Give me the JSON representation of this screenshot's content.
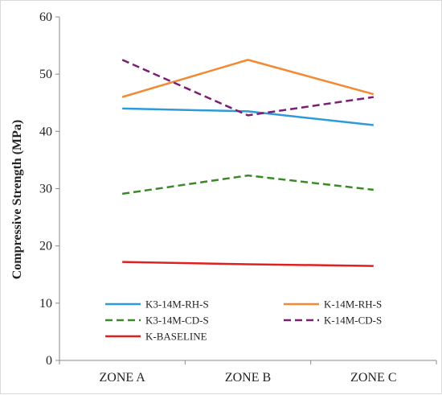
{
  "chart_data": {
    "type": "line",
    "title": "",
    "xlabel": "",
    "ylabel": "Compressive Strength (MPa)",
    "ylim": [
      0,
      60
    ],
    "yticks": [
      0,
      10,
      20,
      30,
      40,
      50,
      60
    ],
    "grid": false,
    "legend_position": "bottom-inside",
    "categories": [
      "ZONE A",
      "ZONE B",
      "ZONE C"
    ],
    "series": [
      {
        "name": "K3-14M-RH-S",
        "values": [
          44.0,
          43.5,
          41.1
        ],
        "color": "#2e9ad8",
        "dashed": false
      },
      {
        "name": "K-14M-RH-S",
        "values": [
          46.0,
          52.5,
          46.5
        ],
        "color": "#f28a35",
        "dashed": false
      },
      {
        "name": "K3-14M-CD-S",
        "values": [
          29.1,
          32.3,
          29.8
        ],
        "color": "#3a8a2a",
        "dashed": true
      },
      {
        "name": "K-14M-CD-S",
        "values": [
          52.5,
          42.8,
          46.0
        ],
        "color": "#7b1f73",
        "dashed": true
      },
      {
        "name": "K-BASELINE",
        "values": [
          17.2,
          16.8,
          16.5
        ],
        "color": "#e02020",
        "dashed": false
      }
    ]
  }
}
